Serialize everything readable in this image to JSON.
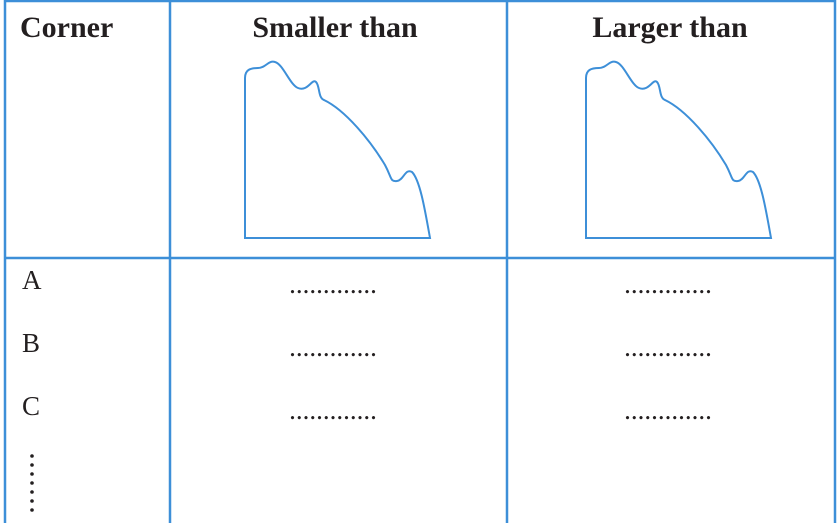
{
  "table": {
    "header": [
      "Corner",
      "Smaller than",
      "Larger than"
    ],
    "rows": [
      [
        "A",
        ".............",
        "............."
      ],
      [
        "B",
        ".............",
        "............."
      ],
      [
        "C",
        ".............",
        "............."
      ]
    ]
  }
}
